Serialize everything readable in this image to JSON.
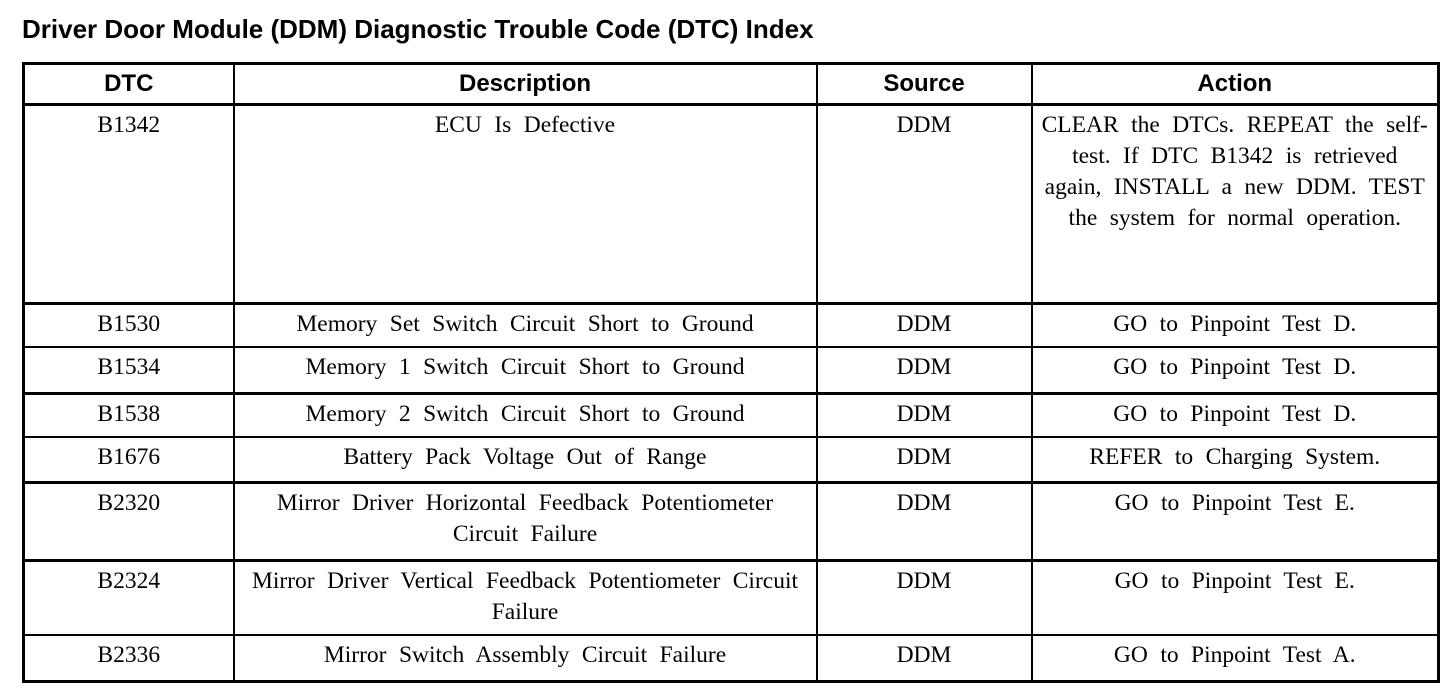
{
  "title": "Driver Door Module (DDM) Diagnostic Trouble Code (DTC) Index",
  "colors": {
    "text": "#000000",
    "background": "#ffffff",
    "border": "#000000"
  },
  "table": {
    "columns": [
      "DTC",
      "Description",
      "Source",
      "Action"
    ],
    "rows": [
      {
        "dtc": "B1342",
        "description": "ECU Is Defective",
        "source": "DDM",
        "action": "CLEAR the DTCs. REPEAT the self-test. If DTC B1342 is retrieved again, INSTALL a new DDM. TEST the system for normal operation."
      },
      {
        "dtc": "B1530",
        "description": "Memory Set Switch Circuit Short to Ground",
        "source": "DDM",
        "action": "GO to Pinpoint Test D."
      },
      {
        "dtc": "B1534",
        "description": "Memory 1 Switch Circuit Short to Ground",
        "source": "DDM",
        "action": "GO to Pinpoint Test D."
      },
      {
        "dtc": "B1538",
        "description": "Memory 2 Switch Circuit Short to Ground",
        "source": "DDM",
        "action": "GO to Pinpoint Test D."
      },
      {
        "dtc": "B1676",
        "description": "Battery Pack Voltage Out of Range",
        "source": "DDM",
        "action": "REFER to Charging System."
      },
      {
        "dtc": "B2320",
        "description": "Mirror Driver Horizontal Feedback Potentiometer Circuit Failure",
        "source": "DDM",
        "action": "GO to Pinpoint Test E."
      },
      {
        "dtc": "B2324",
        "description": "Mirror Driver Vertical Feedback Potentiometer Circuit Failure",
        "source": "DDM",
        "action": "GO to Pinpoint Test E."
      },
      {
        "dtc": "B2336",
        "description": "Mirror Switch Assembly Circuit Failure",
        "source": "DDM",
        "action": "GO to Pinpoint Test A."
      }
    ]
  }
}
